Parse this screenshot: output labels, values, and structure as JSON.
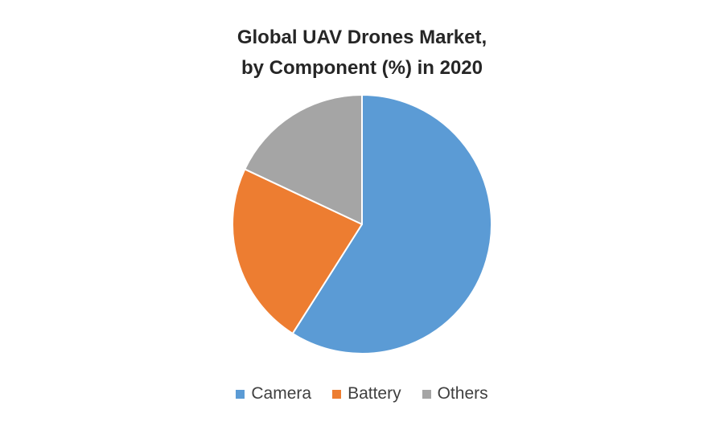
{
  "chart_data": {
    "type": "pie",
    "title_lines": [
      "Global UAV Drones Market,",
      "by Component (%) in 2020"
    ],
    "categories": [
      "Camera",
      "Battery",
      "Others"
    ],
    "values": [
      59,
      23,
      18
    ],
    "colors": [
      "#5B9BD5",
      "#ED7D31",
      "#A5A5A5"
    ],
    "start_angle_deg": 0,
    "direction": "clockwise",
    "legend": "bottom"
  }
}
